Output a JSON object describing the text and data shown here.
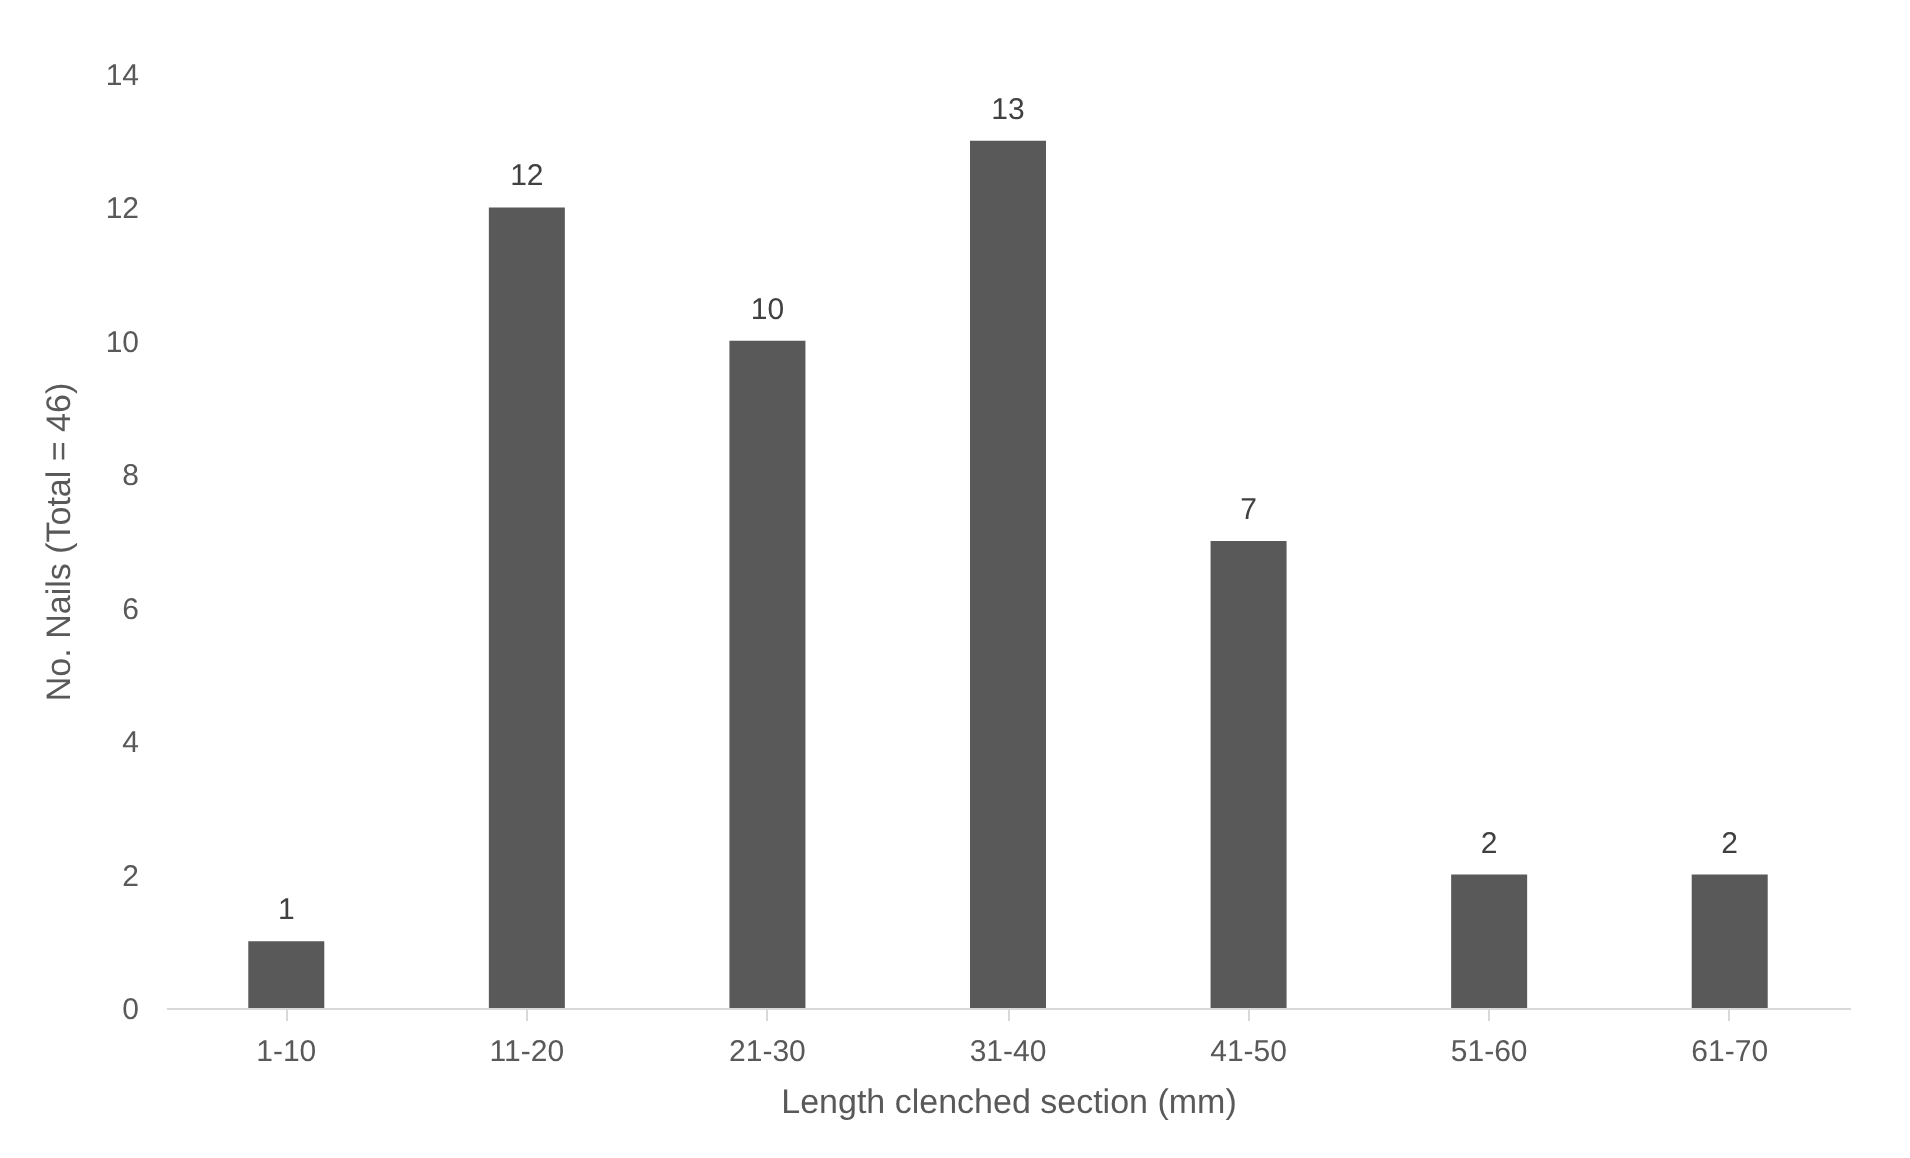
{
  "chart_data": {
    "type": "bar",
    "xlabel": "Length clenched section (mm)",
    "ylabel": "No. Nails (Total = 46)",
    "categories": [
      "1-10",
      "11-20",
      "21-30",
      "31-40",
      "41-50",
      "51-60",
      "61-70"
    ],
    "values": [
      1,
      12,
      10,
      13,
      7,
      2,
      2
    ],
    "color": "#595959",
    "ylim": [
      0,
      14
    ],
    "yticks": [
      0,
      2,
      4,
      6,
      8,
      10,
      12,
      14
    ],
    "data_labels": true
  }
}
